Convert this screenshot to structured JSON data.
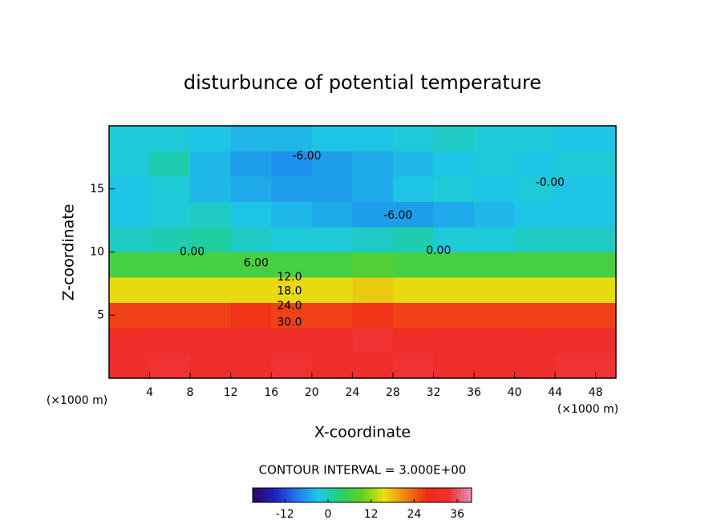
{
  "chart_data": {
    "type": "contour",
    "title": "disturbunce of potential temperature",
    "xlabel": "X-coordinate",
    "ylabel": "Z-coordinate",
    "xunit": "(×1000 m)",
    "yunit": "(×1000 m)",
    "contour_interval_text": "CONTOUR INTERVAL = 3.000E+00",
    "xlim": [
      0,
      50
    ],
    "xticks": [
      4,
      8,
      12,
      16,
      20,
      24,
      28,
      32,
      36,
      40,
      44,
      48
    ],
    "ylim": [
      0,
      20
    ],
    "yticks": [
      5,
      10,
      15
    ],
    "x": [
      2,
      6,
      10,
      14,
      18,
      22,
      26,
      30,
      34,
      38,
      42,
      46
    ],
    "z": [
      1,
      3,
      5,
      7,
      9,
      11,
      13,
      15,
      17,
      19
    ],
    "values": [
      [
        33,
        34,
        32,
        33,
        34,
        32,
        33,
        34,
        33,
        32,
        33,
        34
      ],
      [
        32,
        33,
        33,
        32,
        33,
        33,
        34,
        32,
        33,
        33,
        32,
        33
      ],
      [
        26,
        26,
        26,
        27,
        26,
        26,
        27,
        26,
        26,
        26,
        26,
        26
      ],
      [
        16,
        16,
        16,
        16,
        16,
        16,
        17,
        16,
        16,
        16,
        16,
        16
      ],
      [
        7,
        7,
        7,
        7,
        7,
        7,
        8,
        7,
        7,
        7,
        7,
        7
      ],
      [
        -1,
        0,
        1,
        -1,
        -2,
        -2,
        -1,
        0,
        -2,
        -2,
        -1,
        -1
      ],
      [
        -3,
        -2,
        -1,
        -3,
        -4,
        -5,
        -6,
        -6,
        -5,
        -4,
        -3,
        -3
      ],
      [
        -3,
        -2,
        -4,
        -5,
        -6,
        -6,
        -5,
        -3,
        -2,
        -3,
        -2,
        -3
      ],
      [
        -2,
        0,
        -4,
        -6,
        -7,
        -6,
        -5,
        -4,
        -3,
        -2,
        -3,
        -2
      ],
      [
        -2,
        -2,
        -3,
        -4,
        -4,
        -3,
        -3,
        -2,
        -1,
        -2,
        -2,
        -3
      ]
    ],
    "contour_labels": [
      {
        "text": "-6.00",
        "x": 19.5,
        "z": 17.6
      },
      {
        "text": "-0.00",
        "x": 43.5,
        "z": 15.5
      },
      {
        "text": "-6.00",
        "x": 28.5,
        "z": 12.9
      },
      {
        "text": "0.00",
        "x": 8.2,
        "z": 10.0
      },
      {
        "text": "0.00",
        "x": 32.5,
        "z": 10.1
      },
      {
        "text": "6.00",
        "x": 14.5,
        "z": 9.1
      },
      {
        "text": "12.0",
        "x": 17.8,
        "z": 8.0
      },
      {
        "text": "18.0",
        "x": 17.8,
        "z": 6.9
      },
      {
        "text": "24.0",
        "x": 17.8,
        "z": 5.7
      },
      {
        "text": "30.0",
        "x": 17.8,
        "z": 4.4
      }
    ],
    "colorbar": {
      "lim": [
        -21,
        40
      ],
      "ticks": [
        -12,
        0,
        12,
        24,
        36
      ],
      "colormap": [
        "#2b0a5e",
        "#2020c0",
        "#1e78f0",
        "#1ec8e6",
        "#20d070",
        "#60d020",
        "#e8e010",
        "#f08010",
        "#f02818",
        "#f03030",
        "#e890c0"
      ]
    }
  }
}
